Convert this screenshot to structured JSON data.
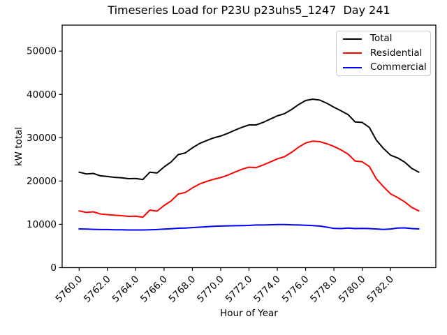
{
  "title": "Timeseries Load for P23U p23uhs5_1247  Day 241",
  "xlabel": "Hour of Year",
  "ylabel": "kW total",
  "legend": {
    "items": [
      {
        "label": "Total",
        "color": "#000000"
      },
      {
        "label": "Residential",
        "color": "#ff0000"
      },
      {
        "label": "Commercial",
        "color": "#0000ff"
      }
    ],
    "position": "upper right"
  },
  "chart_data": {
    "type": "line",
    "title": "Timeseries Load for P23U p23uhs5_1247  Day 241",
    "xlabel": "Hour of Year",
    "ylabel": "kW total",
    "grid": false,
    "xlim": [
      5758.8,
      5785.2
    ],
    "ylim": [
      0,
      56000
    ],
    "xticks": {
      "values": [
        5760,
        5762,
        5764,
        5766,
        5768,
        5770,
        5772,
        5774,
        5776,
        5778,
        5780,
        5782
      ],
      "labels": [
        "5760.0",
        "5762.0",
        "5764.0",
        "5766.0",
        "5768.0",
        "5770.0",
        "5772.0",
        "5774.0",
        "5776.0",
        "5778.0",
        "5780.0",
        "5782.0"
      ]
    },
    "yticks": {
      "values": [
        0,
        10000,
        20000,
        30000,
        40000,
        50000
      ],
      "labels": [
        "0",
        "10000",
        "20000",
        "30000",
        "40000",
        "50000"
      ]
    },
    "x": [
      5760.0,
      5760.5,
      5761.0,
      5761.5,
      5762.0,
      5762.5,
      5763.0,
      5763.5,
      5764.0,
      5764.5,
      5765.0,
      5765.5,
      5766.0,
      5766.5,
      5767.0,
      5767.5,
      5768.0,
      5768.5,
      5769.0,
      5769.5,
      5770.0,
      5770.5,
      5771.0,
      5771.5,
      5772.0,
      5772.5,
      5773.0,
      5773.5,
      5774.0,
      5774.5,
      5775.0,
      5775.5,
      5776.0,
      5776.5,
      5777.0,
      5777.5,
      5778.0,
      5778.5,
      5779.0,
      5779.5,
      5780.0,
      5780.5,
      5781.0,
      5781.5,
      5782.0,
      5782.5,
      5783.0,
      5783.5,
      5784.0
    ],
    "series": [
      {
        "name": "Total",
        "color": "#000000",
        "values": [
          22050,
          21650,
          21750,
          21200,
          21050,
          20850,
          20750,
          20550,
          20600,
          20350,
          22050,
          21850,
          23250,
          24400,
          26100,
          26500,
          27650,
          28650,
          29350,
          29950,
          30400,
          31000,
          31730,
          32400,
          32950,
          32950,
          33550,
          34300,
          35050,
          35550,
          36500,
          37650,
          38600,
          38900,
          38700,
          37950,
          37050,
          36230,
          35340,
          33630,
          33530,
          32380,
          29420,
          27520,
          25970,
          25340,
          24390,
          22930,
          22050
        ]
      },
      {
        "name": "Residential",
        "color": "#ff0000",
        "values": [
          13100,
          12750,
          12900,
          12400,
          12250,
          12100,
          12000,
          11850,
          11900,
          11650,
          13300,
          13050,
          14350,
          15400,
          17000,
          17350,
          18400,
          19300,
          19900,
          20400,
          20800,
          21350,
          22050,
          22700,
          23200,
          23100,
          23700,
          24400,
          25100,
          25600,
          26600,
          27800,
          28800,
          29200,
          29100,
          28600,
          28000,
          27200,
          26200,
          24600,
          24450,
          23350,
          20500,
          18700,
          17050,
          16200,
          15200,
          13900,
          13100
        ]
      },
      {
        "name": "Commercial",
        "color": "#0000ff",
        "values": [
          8950,
          8900,
          8850,
          8800,
          8800,
          8750,
          8750,
          8700,
          8700,
          8700,
          8750,
          8800,
          8900,
          9000,
          9100,
          9150,
          9250,
          9350,
          9450,
          9550,
          9600,
          9650,
          9680,
          9700,
          9750,
          9850,
          9850,
          9900,
          9950,
          9950,
          9900,
          9850,
          9800,
          9700,
          9600,
          9350,
          9050,
          9030,
          9140,
          9030,
          9080,
          9030,
          8920,
          8820,
          8920,
          9140,
          9190,
          9030,
          8950
        ]
      }
    ]
  }
}
